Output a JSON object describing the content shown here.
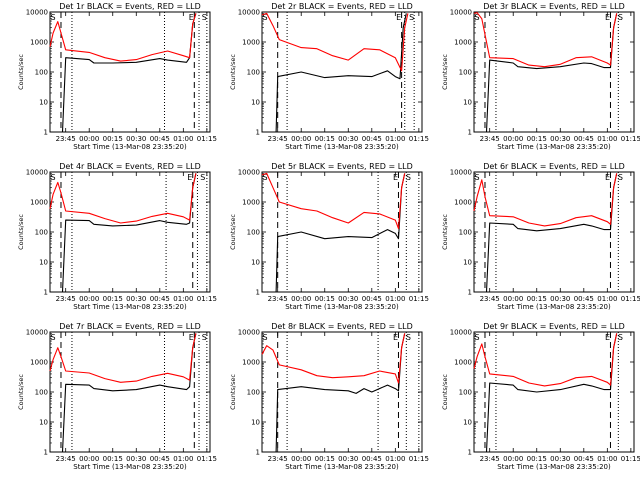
{
  "figure": {
    "background": "#ffffff",
    "event_color": "#000000",
    "lld_color": "#ff0000"
  },
  "chart_data": [
    {
      "type": "line",
      "title": "Det 1r BLACK = Events, RED = LLD",
      "xlabel": "Start Time (13-Mar-08 23:35:20)",
      "ylabel": "Counts/sec",
      "yscale": "log",
      "ylim": [
        1,
        10000
      ],
      "xlim": [
        "23:35",
        "01:17"
      ],
      "x_ticks": [
        "23:45",
        "00:00",
        "00:15",
        "00:30",
        "00:45",
        "01:00",
        "01:15"
      ],
      "y_ticks": [
        "1",
        "10",
        "100",
        "1000",
        "10000"
      ],
      "dashed_markers": [
        "23:42",
        "01:07"
      ],
      "dotted_markers": [
        "23:49",
        "00:48",
        "01:10",
        "01:15"
      ],
      "corner_labels": [
        "S",
        "E",
        "S"
      ],
      "series": [
        {
          "name": "Events",
          "color": "#000000",
          "x": [
            "23:35",
            "23:41",
            "23:43",
            "23:45",
            "00:00",
            "00:03",
            "00:15",
            "00:30",
            "00:45",
            "00:50",
            "01:02",
            "01:04",
            "01:06",
            "01:08"
          ],
          "y": [
            1,
            1,
            1,
            300,
            260,
            200,
            200,
            210,
            280,
            250,
            210,
            300,
            4000,
            9000
          ]
        },
        {
          "name": "LLD",
          "color": "#ff0000",
          "x": [
            "23:35",
            "23:37",
            "23:40",
            "23:42",
            "23:45",
            "00:00",
            "00:10",
            "00:20",
            "00:30",
            "00:40",
            "00:50",
            "01:00",
            "01:04",
            "01:06",
            "01:08"
          ],
          "y": [
            700,
            2000,
            4800,
            2000,
            550,
            450,
            300,
            230,
            260,
            380,
            500,
            350,
            300,
            4000,
            9000
          ]
        }
      ]
    },
    {
      "type": "line",
      "title": "Det 2r BLACK = Events, RED = LLD",
      "xlabel": "Start Time (13-Mar-08 23:35:20)",
      "ylabel": "Counts/sec",
      "yscale": "log",
      "ylim": [
        1,
        10000
      ],
      "xlim": [
        "23:35",
        "01:17"
      ],
      "x_ticks": [
        "23:45",
        "00:00",
        "00:15",
        "00:30",
        "00:45",
        "01:00",
        "01:15"
      ],
      "y_ticks": [
        "1",
        "10",
        "100",
        "1000",
        "10000"
      ],
      "dashed_markers": [
        "23:45",
        "01:04"
      ],
      "dotted_markers": [
        "23:51",
        "01:06",
        "01:12",
        "01:17"
      ],
      "corner_labels": [
        "S",
        "E",
        "S"
      ],
      "series": [
        {
          "name": "Events",
          "color": "#000000",
          "x": [
            "23:35",
            "23:44",
            "23:45",
            "00:00",
            "00:15",
            "00:30",
            "00:45",
            "00:55",
            "01:00",
            "01:03",
            "01:05",
            "01:07"
          ],
          "y": [
            1,
            1,
            70,
            100,
            65,
            75,
            70,
            110,
            70,
            60,
            3000,
            9000
          ]
        },
        {
          "name": "LLD",
          "color": "#ff0000",
          "x": [
            "23:35",
            "23:38",
            "23:42",
            "23:46",
            "00:00",
            "00:10",
            "00:20",
            "00:30",
            "00:40",
            "00:50",
            "01:00",
            "01:04",
            "01:06",
            "01:08"
          ],
          "y": [
            8000,
            9000,
            3500,
            1200,
            650,
            600,
            350,
            250,
            600,
            550,
            300,
            110,
            3000,
            9000
          ]
        }
      ]
    },
    {
      "type": "line",
      "title": "Det 3r BLACK = Events, RED = LLD",
      "xlabel": "Start Time (13-Mar-08 23:35:20)",
      "ylabel": "Counts/sec",
      "yscale": "log",
      "ylim": [
        1,
        10000
      ],
      "xlim": [
        "23:35",
        "01:17"
      ],
      "x_ticks": [
        "23:45",
        "00:00",
        "00:15",
        "00:30",
        "00:45",
        "01:00",
        "01:15"
      ],
      "y_ticks": [
        "1",
        "10",
        "100",
        "1000",
        "10000"
      ],
      "dashed_markers": [
        "23:42",
        "01:02"
      ],
      "dotted_markers": [
        "23:49",
        "01:07"
      ],
      "corner_labels": [
        "S",
        "E",
        "S"
      ],
      "series": [
        {
          "name": "Events",
          "color": "#000000",
          "x": [
            "23:35",
            "23:41",
            "23:43",
            "23:45",
            "00:00",
            "00:03",
            "00:15",
            "00:30",
            "00:45",
            "00:50",
            "00:58",
            "01:02",
            "01:04",
            "01:06"
          ],
          "y": [
            1,
            1,
            1,
            250,
            200,
            150,
            130,
            150,
            200,
            190,
            140,
            140,
            3000,
            9000
          ]
        },
        {
          "name": "LLD",
          "color": "#ff0000",
          "x": [
            "23:35",
            "23:37",
            "23:40",
            "23:43",
            "23:45",
            "00:00",
            "00:10",
            "00:20",
            "00:30",
            "00:40",
            "00:50",
            "01:00",
            "01:02",
            "01:04",
            "01:06"
          ],
          "y": [
            9000,
            9500,
            6000,
            1000,
            300,
            280,
            170,
            150,
            180,
            300,
            320,
            200,
            170,
            3000,
            9000
          ]
        }
      ]
    },
    {
      "type": "line",
      "title": "Det 4r BLACK = Events, RED = LLD",
      "xlabel": "Start Time (13-Mar-08 23:35:20)",
      "ylabel": "Counts/sec",
      "yscale": "log",
      "ylim": [
        1,
        10000
      ],
      "xlim": [
        "23:35",
        "01:17"
      ],
      "x_ticks": [
        "23:45",
        "00:00",
        "00:15",
        "00:30",
        "00:45",
        "01:00",
        "01:15"
      ],
      "y_ticks": [
        "1",
        "10",
        "100",
        "1000",
        "10000"
      ],
      "dashed_markers": [
        "23:42",
        "01:06"
      ],
      "dotted_markers": [
        "23:49",
        "00:49",
        "01:09",
        "01:15"
      ],
      "corner_labels": [
        "S",
        "E",
        "S"
      ],
      "series": [
        {
          "name": "Events",
          "color": "#000000",
          "x": [
            "23:35",
            "23:41",
            "23:43",
            "23:45",
            "00:00",
            "00:03",
            "00:15",
            "00:30",
            "00:45",
            "00:50",
            "01:02",
            "01:04",
            "01:06",
            "01:08"
          ],
          "y": [
            1,
            1,
            1,
            250,
            240,
            180,
            160,
            170,
            240,
            210,
            180,
            200,
            3000,
            9000
          ]
        },
        {
          "name": "LLD",
          "color": "#ff0000",
          "x": [
            "23:35",
            "23:37",
            "23:40",
            "23:42",
            "23:45",
            "00:00",
            "00:10",
            "00:20",
            "00:30",
            "00:40",
            "00:50",
            "01:00",
            "01:04",
            "01:06",
            "01:08"
          ],
          "y": [
            600,
            1800,
            4500,
            2000,
            500,
            420,
            280,
            200,
            230,
            330,
            420,
            320,
            250,
            3000,
            9000
          ]
        }
      ]
    },
    {
      "type": "line",
      "title": "Det 5r BLACK = Events, RED = LLD",
      "xlabel": "Start Time (13-Mar-08 23:35:20)",
      "ylabel": "Counts/sec",
      "yscale": "log",
      "ylim": [
        1,
        10000
      ],
      "xlim": [
        "23:35",
        "01:17"
      ],
      "x_ticks": [
        "23:45",
        "00:00",
        "00:15",
        "00:30",
        "00:45",
        "01:00",
        "01:15"
      ],
      "y_ticks": [
        "1",
        "10",
        "100",
        "1000",
        "10000"
      ],
      "dashed_markers": [
        "23:45",
        "01:02"
      ],
      "dotted_markers": [
        "23:51",
        "00:49",
        "01:07",
        "01:15"
      ],
      "corner_labels": [
        "S",
        "E",
        "S"
      ],
      "series": [
        {
          "name": "Events",
          "color": "#000000",
          "x": [
            "23:35",
            "23:44",
            "23:45",
            "00:00",
            "00:15",
            "00:30",
            "00:45",
            "00:55",
            "01:00",
            "01:02",
            "01:04",
            "01:06"
          ],
          "y": [
            1,
            1,
            70,
            100,
            60,
            70,
            65,
            120,
            90,
            60,
            3000,
            9000
          ]
        },
        {
          "name": "LLD",
          "color": "#ff0000",
          "x": [
            "23:35",
            "23:38",
            "23:42",
            "23:46",
            "00:00",
            "00:10",
            "00:20",
            "00:30",
            "00:40",
            "00:50",
            "01:00",
            "01:02",
            "01:04",
            "01:06"
          ],
          "y": [
            8000,
            9000,
            3000,
            1000,
            600,
            500,
            300,
            200,
            450,
            400,
            250,
            130,
            3000,
            9000
          ]
        }
      ]
    },
    {
      "type": "line",
      "title": "Det 6r BLACK = Events, RED = LLD",
      "xlabel": "Start Time (13-Mar-08 23:35:20)",
      "ylabel": "Counts/sec",
      "yscale": "log",
      "ylim": [
        1,
        10000
      ],
      "xlim": [
        "23:35",
        "01:17"
      ],
      "x_ticks": [
        "23:45",
        "00:00",
        "00:15",
        "00:30",
        "00:45",
        "01:00",
        "01:15"
      ],
      "y_ticks": [
        "1",
        "10",
        "100",
        "1000",
        "10000"
      ],
      "dashed_markers": [
        "23:42",
        "01:02"
      ],
      "dotted_markers": [
        "23:49",
        "01:07"
      ],
      "corner_labels": [
        "S",
        "E",
        "S"
      ],
      "series": [
        {
          "name": "Events",
          "color": "#000000",
          "x": [
            "23:35",
            "23:41",
            "23:43",
            "23:45",
            "00:00",
            "00:03",
            "00:15",
            "00:30",
            "00:45",
            "00:50",
            "00:58",
            "01:02",
            "01:04",
            "01:06"
          ],
          "y": [
            1,
            1,
            1,
            200,
            180,
            130,
            110,
            130,
            180,
            160,
            120,
            120,
            3000,
            9000
          ]
        },
        {
          "name": "LLD",
          "color": "#ff0000",
          "x": [
            "23:35",
            "23:37",
            "23:40",
            "23:42",
            "23:45",
            "00:00",
            "00:10",
            "00:20",
            "00:30",
            "00:40",
            "00:50",
            "01:00",
            "01:02",
            "01:04",
            "01:06"
          ],
          "y": [
            500,
            1500,
            5500,
            1500,
            350,
            320,
            200,
            160,
            190,
            300,
            350,
            220,
            180,
            3000,
            9000
          ]
        }
      ]
    },
    {
      "type": "line",
      "title": "Det 7r BLACK = Events, RED = LLD",
      "xlabel": "Start Time (13-Mar-08 23:35:20)",
      "ylabel": "Counts/sec",
      "yscale": "log",
      "ylim": [
        1,
        10000
      ],
      "xlim": [
        "23:35",
        "01:17"
      ],
      "x_ticks": [
        "23:45",
        "00:00",
        "00:15",
        "00:30",
        "00:45",
        "01:00",
        "01:15"
      ],
      "y_ticks": [
        "1",
        "10",
        "100",
        "1000",
        "10000"
      ],
      "dashed_markers": [
        "23:42",
        "01:07"
      ],
      "dotted_markers": [
        "23:49",
        "00:48",
        "01:10",
        "01:15"
      ],
      "corner_labels": [
        "S",
        "E",
        "S"
      ],
      "series": [
        {
          "name": "Events",
          "color": "#000000",
          "x": [
            "23:35",
            "23:41",
            "23:43",
            "23:45",
            "00:00",
            "00:03",
            "00:15",
            "00:30",
            "00:45",
            "00:50",
            "01:02",
            "01:04",
            "01:06",
            "01:08"
          ],
          "y": [
            1,
            1,
            1,
            180,
            170,
            130,
            110,
            120,
            170,
            150,
            120,
            150,
            3000,
            9000
          ]
        },
        {
          "name": "LLD",
          "color": "#ff0000",
          "x": [
            "23:35",
            "23:37",
            "23:40",
            "23:42",
            "23:45",
            "00:00",
            "00:10",
            "00:20",
            "00:30",
            "00:40",
            "00:50",
            "01:00",
            "01:04",
            "01:06",
            "01:08"
          ],
          "y": [
            500,
            1200,
            3000,
            1500,
            500,
            430,
            280,
            210,
            230,
            330,
            420,
            320,
            250,
            3000,
            9000
          ]
        }
      ]
    },
    {
      "type": "line",
      "title": "Det 8r BLACK = Events, RED = LLD",
      "xlabel": "Start Time (13-Mar-08 23:35:20)",
      "ylabel": "Counts/sec",
      "yscale": "log",
      "ylim": [
        1,
        10000
      ],
      "xlim": [
        "23:35",
        "01:17"
      ],
      "x_ticks": [
        "23:45",
        "00:00",
        "00:15",
        "00:30",
        "00:45",
        "01:00",
        "01:15"
      ],
      "y_ticks": [
        "1",
        "10",
        "100",
        "1000",
        "10000"
      ],
      "dashed_markers": [
        "23:45",
        "01:02"
      ],
      "dotted_markers": [
        "23:51",
        "00:49",
        "01:07",
        "01:15"
      ],
      "corner_labels": [
        "S",
        "E",
        "S"
      ],
      "series": [
        {
          "name": "Events",
          "color": "#000000",
          "x": [
            "23:35",
            "23:44",
            "23:45",
            "00:00",
            "00:15",
            "00:30",
            "00:35",
            "00:40",
            "00:45",
            "00:55",
            "01:00",
            "01:02",
            "01:04",
            "01:06"
          ],
          "y": [
            1,
            1,
            120,
            150,
            120,
            110,
            90,
            130,
            100,
            170,
            130,
            110,
            3000,
            9000
          ]
        },
        {
          "name": "LLD",
          "color": "#ff0000",
          "x": [
            "23:35",
            "23:38",
            "23:42",
            "23:46",
            "00:00",
            "00:10",
            "00:20",
            "00:30",
            "00:40",
            "00:50",
            "01:00",
            "01:02",
            "01:04",
            "01:06"
          ],
          "y": [
            1800,
            3500,
            2500,
            800,
            550,
            350,
            300,
            320,
            350,
            500,
            400,
            200,
            3000,
            9000
          ]
        }
      ]
    },
    {
      "type": "line",
      "title": "Det 9r BLACK = Events, RED = LLD",
      "xlabel": "Start Time (13-Mar-08 23:35:20)",
      "ylabel": "Counts/sec",
      "yscale": "log",
      "ylim": [
        1,
        10000
      ],
      "xlim": [
        "23:35",
        "01:17"
      ],
      "x_ticks": [
        "23:45",
        "00:00",
        "00:15",
        "00:30",
        "00:45",
        "01:00",
        "01:15"
      ],
      "y_ticks": [
        "1",
        "10",
        "100",
        "1000",
        "10000"
      ],
      "dashed_markers": [
        "23:42",
        "01:02"
      ],
      "dotted_markers": [
        "23:49",
        "01:07"
      ],
      "corner_labels": [
        "S",
        "E",
        "S"
      ],
      "series": [
        {
          "name": "Events",
          "color": "#000000",
          "x": [
            "23:35",
            "23:41",
            "23:43",
            "23:45",
            "00:00",
            "00:03",
            "00:15",
            "00:30",
            "00:45",
            "00:50",
            "00:58",
            "01:02",
            "01:04",
            "01:06"
          ],
          "y": [
            1,
            1,
            1,
            200,
            170,
            120,
            100,
            120,
            180,
            160,
            120,
            120,
            3000,
            9000
          ]
        },
        {
          "name": "LLD",
          "color": "#ff0000",
          "x": [
            "23:35",
            "23:37",
            "23:40",
            "23:42",
            "23:45",
            "00:00",
            "00:10",
            "00:20",
            "00:30",
            "00:40",
            "00:50",
            "01:00",
            "01:02",
            "01:04",
            "01:06"
          ],
          "y": [
            600,
            1500,
            4000,
            1500,
            400,
            330,
            200,
            160,
            190,
            300,
            330,
            210,
            170,
            3000,
            9000
          ]
        }
      ]
    }
  ]
}
